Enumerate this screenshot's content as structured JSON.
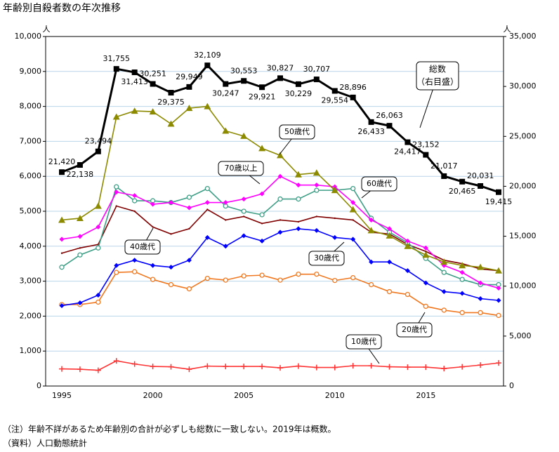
{
  "chart_data": {
    "type": "line",
    "title": "年齢別自殺者数の年次推移",
    "y_unit": "人",
    "y2_unit": "人",
    "categories": [
      "1995",
      null,
      null,
      null,
      null,
      "2000",
      null,
      null,
      null,
      null,
      "2005",
      null,
      null,
      null,
      null,
      "2010",
      null,
      null,
      null,
      null,
      "2015",
      null,
      null,
      null,
      null
    ],
    "ylim": [
      0,
      10000
    ],
    "yticks": [
      0,
      {
        "value": 1000,
        "label": "1,000"
      },
      {
        "value": 2000,
        "label": "2,000"
      },
      {
        "value": 3000,
        "label": "3,000"
      },
      {
        "value": 4000,
        "label": "4,000"
      },
      {
        "value": 5000,
        "label": "5,000"
      },
      {
        "value": 6000,
        "label": "6,000"
      },
      {
        "value": 7000,
        "label": "7,000"
      },
      {
        "value": 8000,
        "label": "8,000"
      },
      {
        "value": 9000,
        "label": "9,000"
      },
      {
        "value": 10000,
        "label": "10,000"
      }
    ],
    "y2lim": [
      0,
      35000
    ],
    "y2ticks": [
      0,
      {
        "value": 5000,
        "label": "5,000"
      },
      {
        "value": 10000,
        "label": "10,000"
      },
      {
        "value": 15000,
        "label": "15,000"
      },
      {
        "value": 20000,
        "label": "20,000"
      },
      {
        "value": 25000,
        "label": "25,000"
      },
      {
        "value": 30000,
        "label": "30,000"
      },
      {
        "value": 35000,
        "label": "35,000"
      }
    ],
    "grid": true,
    "series": [
      {
        "name": "総数",
        "axis_note": "（右目盛）",
        "axis": "y2",
        "color": "#000000",
        "marker": "square",
        "values": [
          21420,
          22138,
          23494,
          31755,
          31413,
          30251,
          29375,
          29949,
          32109,
          30247,
          30553,
          29921,
          30827,
          30229,
          30707,
          29554,
          28896,
          26433,
          26063,
          24417,
          23152,
          21017,
          20465,
          20031,
          19415
        ],
        "value_labels": [
          "21,420",
          "22,138",
          "23,494",
          "31,755",
          "31,413",
          "30,251",
          "29,375",
          "29,949",
          "32,109",
          "30,247",
          "30,553",
          "29,921",
          "30,827",
          "30,229",
          "30,707",
          "29,554",
          "28,896",
          "26,433",
          "26,063",
          "24,417",
          "23,152",
          "21,017",
          "20,465",
          "20,031",
          "19,415"
        ]
      },
      {
        "name": "50歳代",
        "color": "#8c8a00",
        "marker": "triangle",
        "values": [
          4750,
          4800,
          5150,
          7700,
          7870,
          7850,
          7500,
          7950,
          8000,
          7300,
          7150,
          6800,
          6600,
          6050,
          6100,
          5600,
          5050,
          4450,
          4300,
          4000,
          3750,
          3550,
          3450,
          3400,
          3300
        ]
      },
      {
        "name": "70歳以上",
        "color": "#ff00ff",
        "marker": "diamond",
        "values": [
          4200,
          4280,
          4550,
          5550,
          5450,
          5200,
          5250,
          5100,
          5250,
          5250,
          5350,
          5500,
          6000,
          5750,
          5750,
          5700,
          5250,
          4750,
          4500,
          4150,
          3950,
          3450,
          3250,
          2950,
          2800
        ]
      },
      {
        "name": "60歳代",
        "color": "#3f9f86",
        "marker": "circle",
        "values": [
          3400,
          3750,
          3950,
          5700,
          5300,
          5300,
          5250,
          5400,
          5650,
          5150,
          5000,
          4900,
          5350,
          5350,
          5600,
          5600,
          5650,
          4800,
          4400,
          4100,
          3650,
          3250,
          3050,
          2900,
          2900
        ]
      },
      {
        "name": "40歳代",
        "color": "#800000",
        "marker": "none",
        "values": [
          3800,
          3950,
          4050,
          5150,
          5000,
          4550,
          4350,
          4500,
          5050,
          4750,
          4850,
          4650,
          4750,
          4700,
          4850,
          4800,
          4750,
          4400,
          4350,
          4050,
          3850,
          3600,
          3500,
          3350,
          3300
        ]
      },
      {
        "name": "30歳代",
        "color": "#0000ff",
        "marker": "diamond",
        "values": [
          2300,
          2380,
          2600,
          3450,
          3600,
          3450,
          3400,
          3600,
          4250,
          4000,
          4300,
          4150,
          4400,
          4500,
          4450,
          4250,
          4200,
          3550,
          3550,
          3300,
          2950,
          2700,
          2650,
          2500,
          2450
        ]
      },
      {
        "name": "20歳代",
        "color": "#f07820",
        "marker": "circle",
        "values": [
          2330,
          2330,
          2400,
          3250,
          3270,
          3050,
          2900,
          2780,
          3080,
          3030,
          3150,
          3170,
          3030,
          3200,
          3200,
          3020,
          3100,
          2900,
          2700,
          2620,
          2280,
          2170,
          2100,
          2100,
          2020
        ]
      },
      {
        "name": "10歳代",
        "color": "#ff3333",
        "marker": "plus",
        "values": [
          490,
          480,
          450,
          720,
          630,
          560,
          550,
          480,
          570,
          560,
          560,
          560,
          520,
          570,
          530,
          530,
          580,
          580,
          550,
          540,
          540,
          500,
          550,
          600,
          660
        ]
      }
    ]
  },
  "notes": [
    "（注）年齢不詳があるため年齢別の合計が必ずしも総数に一致しない。2019年は概数。",
    "（資料）人口動態統計"
  ]
}
